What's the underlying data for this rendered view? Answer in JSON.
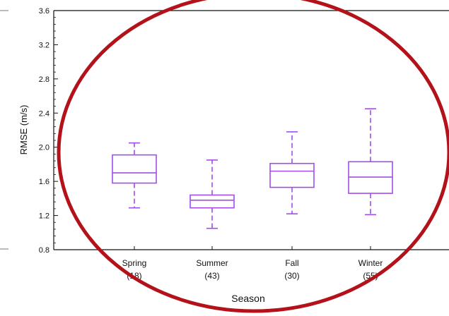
{
  "chart_data": {
    "type": "boxplot",
    "title": "",
    "xlabel": "Season",
    "ylabel": "RMSE (m/s)",
    "ylim": [
      0.8,
      3.6
    ],
    "yticks": [
      0.8,
      1.2,
      1.6,
      2.0,
      2.4,
      2.8,
      3.2,
      3.6
    ],
    "ytick_labels": [
      "0.8",
      "1.2",
      "1.6",
      "2.0",
      "2.4",
      "2.8",
      "3.2",
      "3.6"
    ],
    "categories": [
      "Spring",
      "Summer",
      "Fall",
      "Winter"
    ],
    "counts": [
      "(18)",
      "(43)",
      "(30)",
      "(55)"
    ],
    "boxes": [
      {
        "category": "Spring",
        "min": 1.29,
        "q1": 1.58,
        "median": 1.7,
        "q3": 1.91,
        "max": 2.05
      },
      {
        "category": "Summer",
        "min": 1.05,
        "q1": 1.29,
        "median": 1.38,
        "q3": 1.44,
        "max": 1.85
      },
      {
        "category": "Fall",
        "min": 1.22,
        "q1": 1.53,
        "median": 1.72,
        "q3": 1.81,
        "max": 2.18
      },
      {
        "category": "Winter",
        "min": 1.21,
        "q1": 1.46,
        "median": 1.65,
        "q3": 1.83,
        "max": 2.45
      }
    ],
    "box_color": "#a24dea",
    "annotation_color": "#b4121a",
    "grid": false
  }
}
